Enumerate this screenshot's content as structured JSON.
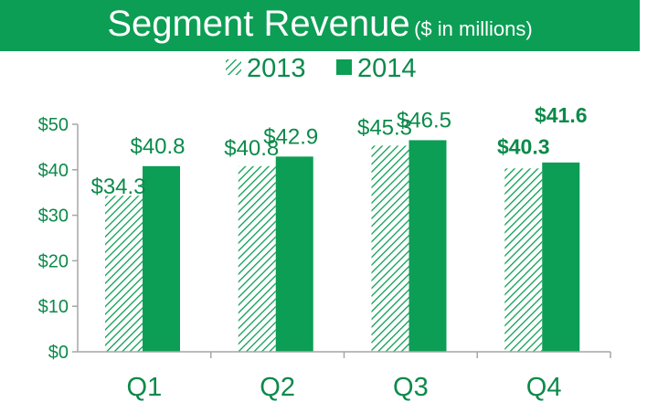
{
  "chart_data": {
    "type": "bar",
    "title": "Segment Revenue",
    "subtitle": "($ in millions)",
    "categories": [
      "Q1",
      "Q2",
      "Q3",
      "Q4"
    ],
    "series": [
      {
        "name": "2013",
        "values": [
          34.3,
          40.8,
          45.3,
          40.3
        ],
        "labels": [
          "$34.3",
          "$40.8",
          "$45.3",
          "$40.3"
        ],
        "style": "hatched",
        "color": "#0c9e54"
      },
      {
        "name": "2014",
        "values": [
          40.8,
          42.9,
          46.5,
          41.6
        ],
        "labels": [
          "$40.8",
          "$42.9",
          "$46.5",
          "$41.6"
        ],
        "style": "solid",
        "color": "#0c9e54"
      }
    ],
    "ylim": [
      0,
      50
    ],
    "yticks": [
      0,
      10,
      20,
      30,
      40,
      50
    ],
    "ytick_labels": [
      "$0",
      "$10",
      "$20",
      "$30",
      "$40",
      "$50"
    ],
    "xlabel": "",
    "ylabel": "",
    "grid": false,
    "legend_position": "top-center",
    "emphasized_category": "Q4"
  }
}
